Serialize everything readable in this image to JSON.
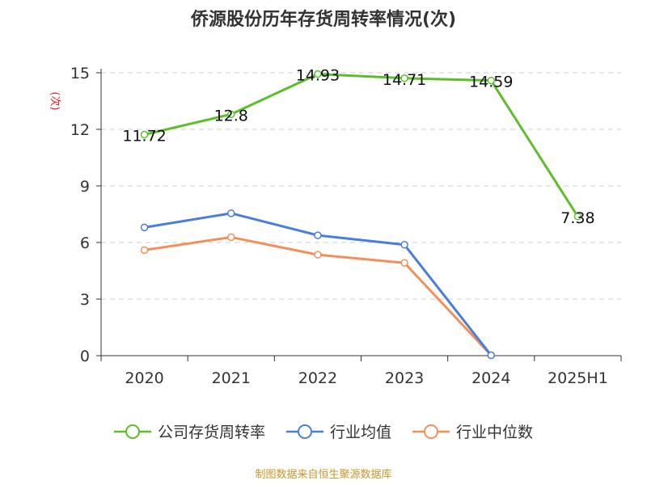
{
  "chart_data": {
    "type": "line",
    "title": "侨源股份历年存货周转率情况(次)",
    "ylabel": "(次)",
    "xlabel": "",
    "categories": [
      "2020",
      "2021",
      "2022",
      "2023",
      "2024",
      "2025H1"
    ],
    "ylim": [
      0,
      15
    ],
    "yticks": [
      "0",
      "3",
      "6",
      "9",
      "12",
      "15"
    ],
    "grid": true,
    "legend_position": "bottom",
    "series": [
      {
        "name": "公司存货周转率",
        "color": "#5cbf2a",
        "values": [
          11.72,
          12.8,
          14.93,
          14.71,
          14.59,
          7.38
        ],
        "data_labels": [
          "11.72",
          "12.8",
          "14.93",
          "14.71",
          "14.59",
          "7.38"
        ]
      },
      {
        "name": "行业均值",
        "color": "#4a7fd9",
        "values": [
          6.8,
          7.55,
          6.38,
          5.88,
          0.02,
          null
        ]
      },
      {
        "name": "行业中位数",
        "color": "#f58f5a",
        "values": [
          5.6,
          6.28,
          5.35,
          4.92,
          0.02,
          null
        ]
      }
    ]
  },
  "source": "制图数据来自恒生聚源数据库"
}
